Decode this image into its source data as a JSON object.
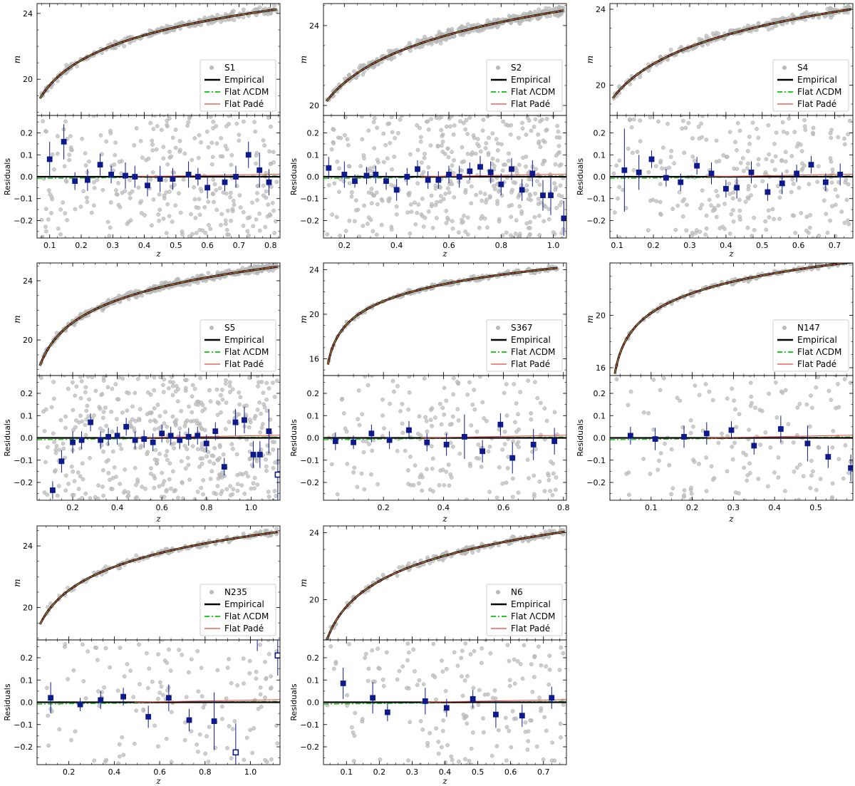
{
  "figure": {
    "chart_data": [
      {
        "type": "scatter",
        "sample": "S1",
        "zlim": [
          0.06,
          0.83
        ],
        "mlim": [
          17.8,
          24.6
        ],
        "mticks": [
          20,
          24
        ],
        "rticks": [
          -0.2,
          -0.1,
          0.0,
          0.1,
          0.2
        ],
        "rlim": [
          -0.28,
          0.28
        ],
        "zticks": [
          0.1,
          0.2,
          0.3,
          0.4,
          0.5,
          0.6,
          0.7,
          0.8
        ],
        "curve": {
          "a": 24.25,
          "b": 5.05,
          "z_end": 0.82
        },
        "n_points": 300,
        "binned": {
          "z": [
            0.1,
            0.145,
            0.18,
            0.22,
            0.26,
            0.295,
            0.34,
            0.37,
            0.41,
            0.45,
            0.49,
            0.54,
            0.57,
            0.6,
            0.655,
            0.69,
            0.73,
            0.765,
            0.795
          ],
          "r": [
            0.08,
            0.16,
            -0.02,
            -0.015,
            0.055,
            0.01,
            0.005,
            0.0,
            -0.04,
            -0.01,
            -0.01,
            0.01,
            0.0,
            -0.05,
            -0.025,
            0.0,
            0.1,
            0.03,
            -0.025
          ],
          "err": [
            0.08,
            0.08,
            0.04,
            0.05,
            0.05,
            0.04,
            0.06,
            0.05,
            0.05,
            0.06,
            0.05,
            0.06,
            0.04,
            0.05,
            0.04,
            0.05,
            0.06,
            0.08,
            0.06
          ],
          "open": []
        }
      },
      {
        "type": "scatter",
        "sample": "S2",
        "zlim": [
          0.12,
          1.05
        ],
        "mlim": [
          19.5,
          25.1
        ],
        "mticks": [
          20,
          24
        ],
        "rticks": [
          -0.2,
          -0.1,
          0.0,
          0.1,
          0.2
        ],
        "rlim": [
          -0.28,
          0.28
        ],
        "zticks": [
          0.2,
          0.4,
          0.6,
          0.8,
          1.0
        ],
        "curve": {
          "a": 24.75,
          "b": 5.05,
          "z_end": 1.04
        },
        "n_points": 420,
        "binned": {
          "z": [
            0.14,
            0.2,
            0.24,
            0.285,
            0.32,
            0.36,
            0.4,
            0.44,
            0.48,
            0.52,
            0.56,
            0.6,
            0.64,
            0.68,
            0.72,
            0.76,
            0.8,
            0.84,
            0.88,
            0.92,
            0.96,
            0.99,
            1.04
          ],
          "r": [
            0.04,
            0.01,
            -0.02,
            0.005,
            0.01,
            -0.02,
            -0.06,
            0.0,
            0.035,
            -0.015,
            -0.015,
            0.01,
            0.0,
            0.025,
            0.045,
            0.02,
            -0.035,
            0.035,
            -0.06,
            0.015,
            -0.085,
            -0.085,
            -0.19
          ],
          "err": [
            0.05,
            0.06,
            0.03,
            0.04,
            0.04,
            0.04,
            0.05,
            0.04,
            0.04,
            0.04,
            0.04,
            0.04,
            0.05,
            0.04,
            0.05,
            0.05,
            0.05,
            0.05,
            0.05,
            0.06,
            0.07,
            0.09,
            0.08
          ],
          "open": []
        }
      },
      {
        "type": "scatter",
        "sample": "S4",
        "zlim": [
          0.08,
          0.75
        ],
        "mlim": [
          18.4,
          24.3
        ],
        "mticks": [
          20,
          24
        ],
        "rticks": [
          -0.2,
          -0.1,
          0.0,
          0.1,
          0.2
        ],
        "rlim": [
          -0.28,
          0.28
        ],
        "zticks": [
          0.1,
          0.2,
          0.3,
          0.4,
          0.5,
          0.6,
          0.7
        ],
        "curve": {
          "a": 24.0,
          "b": 5.05,
          "z_end": 0.745
        },
        "n_points": 260,
        "binned": {
          "z": [
            0.12,
            0.16,
            0.195,
            0.235,
            0.275,
            0.32,
            0.36,
            0.4,
            0.43,
            0.47,
            0.515,
            0.555,
            0.595,
            0.635,
            0.675,
            0.715
          ],
          "r": [
            0.03,
            0.02,
            0.08,
            -0.005,
            -0.025,
            0.05,
            0.015,
            -0.055,
            -0.05,
            0.02,
            -0.07,
            -0.03,
            0.015,
            0.055,
            -0.025,
            0.01
          ],
          "err": [
            0.19,
            0.08,
            0.04,
            0.04,
            0.04,
            0.04,
            0.05,
            0.04,
            0.05,
            0.05,
            0.04,
            0.05,
            0.04,
            0.04,
            0.04,
            0.05
          ],
          "open": []
        }
      },
      {
        "type": "scatter",
        "sample": "S5",
        "zlim": [
          0.04,
          1.13
        ],
        "mlim": [
          17.6,
          25.2
        ],
        "mticks": [
          20,
          24
        ],
        "rticks": [
          -0.2,
          -0.1,
          0.0,
          0.1,
          0.2
        ],
        "rlim": [
          -0.28,
          0.28
        ],
        "zticks": [
          0.2,
          0.4,
          0.6,
          0.8,
          1.0
        ],
        "curve": {
          "a": 24.95,
          "b": 5.05,
          "z_end": 1.12
        },
        "n_points": 460,
        "binned": {
          "z": [
            0.11,
            0.15,
            0.2,
            0.24,
            0.28,
            0.325,
            0.36,
            0.4,
            0.44,
            0.48,
            0.52,
            0.56,
            0.6,
            0.64,
            0.68,
            0.72,
            0.76,
            0.8,
            0.84,
            0.88,
            0.93,
            0.97,
            1.01,
            1.04,
            1.08,
            1.12
          ],
          "r": [
            -0.235,
            -0.105,
            -0.02,
            -0.01,
            0.07,
            -0.01,
            0.005,
            0.01,
            0.05,
            -0.01,
            -0.005,
            -0.02,
            0.02,
            0.01,
            -0.01,
            0.005,
            0.01,
            -0.025,
            0.03,
            -0.13,
            0.07,
            0.08,
            -0.075,
            -0.075,
            0.03,
            -0.165
          ],
          "err": [
            0.04,
            0.05,
            0.05,
            0.04,
            0.04,
            0.04,
            0.04,
            0.04,
            0.04,
            0.04,
            0.04,
            0.04,
            0.04,
            0.04,
            0.04,
            0.04,
            0.04,
            0.04,
            0.04,
            0.04,
            0.06,
            0.06,
            0.06,
            0.06,
            0.1,
            0.12
          ],
          "open": [
            false,
            false,
            false,
            false,
            false,
            false,
            false,
            false,
            false,
            false,
            false,
            false,
            false,
            false,
            false,
            false,
            false,
            false,
            false,
            false,
            false,
            false,
            false,
            false,
            false,
            true
          ]
        }
      },
      {
        "type": "scatter",
        "sample": "S367",
        "zlim": [
          0.0,
          0.81
        ],
        "mlim": [
          14.5,
          24.6
        ],
        "mticks": [
          16,
          20,
          24
        ],
        "rticks": [
          -0.2,
          -0.1,
          0.0,
          0.1,
          0.2
        ],
        "rlim": [
          -0.28,
          0.28
        ],
        "zticks": [
          0.2,
          0.4,
          0.6,
          0.8
        ],
        "curve": {
          "a": 24.15,
          "b": 5.05,
          "z_end": 0.78,
          "z_start": 0.015
        },
        "n_points": 200,
        "binned": {
          "z": [
            0.04,
            0.1,
            0.16,
            0.22,
            0.285,
            0.345,
            0.41,
            0.47,
            0.53,
            0.59,
            0.63,
            0.7,
            0.77
          ],
          "r": [
            -0.015,
            -0.02,
            0.02,
            -0.01,
            0.035,
            -0.02,
            -0.03,
            0.005,
            -0.06,
            0.06,
            -0.09,
            -0.03,
            -0.015
          ],
          "err": [
            0.04,
            0.03,
            0.04,
            0.04,
            0.04,
            0.04,
            0.05,
            0.1,
            0.05,
            0.05,
            0.07,
            0.07,
            0.06
          ],
          "open": []
        }
      },
      {
        "type": "scatter",
        "sample": "N147",
        "zlim": [
          0.0,
          0.59
        ],
        "mlim": [
          15.4,
          24.0
        ],
        "mticks": [
          16,
          20
        ],
        "rticks": [
          -0.2,
          -0.1,
          0.0,
          0.1,
          0.2
        ],
        "rlim": [
          -0.28,
          0.28
        ],
        "zticks": [
          0.1,
          0.2,
          0.3,
          0.4,
          0.5
        ],
        "curve": {
          "a": 24.05,
          "b": 5.05,
          "z_end": 0.585,
          "z_start": 0.012
        },
        "n_points": 150,
        "binned": {
          "z": [
            0.05,
            0.11,
            0.18,
            0.235,
            0.295,
            0.35,
            0.415,
            0.48,
            0.53,
            0.585
          ],
          "r": [
            0.01,
            -0.005,
            0.005,
            0.02,
            0.035,
            -0.035,
            0.04,
            -0.025,
            -0.085,
            -0.135
          ],
          "err": [
            0.04,
            0.05,
            0.05,
            0.05,
            0.04,
            0.04,
            0.06,
            0.08,
            0.05,
            0.06
          ],
          "open": []
        }
      },
      {
        "type": "scatter",
        "sample": "N235",
        "zlim": [
          0.06,
          1.13
        ],
        "mlim": [
          17.9,
          25.3
        ],
        "mticks": [
          20,
          24
        ],
        "rticks": [
          -0.2,
          -0.1,
          0.0,
          0.1,
          0.2
        ],
        "rlim": [
          -0.28,
          0.28
        ],
        "zticks": [
          0.2,
          0.4,
          0.6,
          0.8,
          1.0
        ],
        "curve": {
          "a": 24.9,
          "b": 5.05,
          "z_end": 1.12
        },
        "n_points": 140,
        "binned": {
          "z": [
            0.12,
            0.25,
            0.34,
            0.44,
            0.55,
            0.64,
            0.73,
            0.84,
            0.935,
            1.03,
            1.12
          ],
          "r": [
            0.02,
            -0.01,
            0.01,
            0.025,
            -0.065,
            0.02,
            -0.08,
            -0.085,
            -0.225,
            0.35,
            0.21
          ],
          "err": [
            0.07,
            0.03,
            0.04,
            0.04,
            0.05,
            0.06,
            0.05,
            0.13,
            0.13,
            0.12,
            0.09
          ],
          "open": [
            false,
            false,
            false,
            false,
            false,
            false,
            false,
            false,
            true,
            false,
            true
          ]
        }
      },
      {
        "type": "scatter",
        "sample": "N6",
        "zlim": [
          0.03,
          0.77
        ],
        "mlim": [
          17.6,
          24.4
        ],
        "mticks": [
          20,
          24
        ],
        "rticks": [
          -0.2,
          -0.1,
          0.0,
          0.1,
          0.2
        ],
        "rlim": [
          -0.28,
          0.28
        ],
        "zticks": [
          0.1,
          0.2,
          0.3,
          0.4,
          0.5,
          0.6,
          0.7
        ],
        "curve": {
          "a": 24.05,
          "b": 5.05,
          "z_end": 0.765
        },
        "n_points": 170,
        "binned": {
          "z": [
            0.09,
            0.18,
            0.225,
            0.34,
            0.405,
            0.485,
            0.555,
            0.635,
            0.725
          ],
          "r": [
            0.085,
            0.02,
            -0.045,
            0.005,
            -0.025,
            0.015,
            -0.055,
            -0.06,
            0.02
          ],
          "err": [
            0.07,
            0.07,
            0.04,
            0.06,
            0.04,
            0.04,
            0.06,
            0.05,
            0.05
          ],
          "open": []
        }
      }
    ],
    "legend_items": [
      "Empirical",
      "Flat ΛCDM",
      "Flat Padé"
    ],
    "top_ylabel": "m",
    "bottom_ylabel": "Residuals",
    "xlabel": "z",
    "colors": {
      "data": "#bdbdbd",
      "binned": "#0d1a8c",
      "empirical": "#000000",
      "lcdm": "#22cc22",
      "pade": "#e8463c"
    }
  }
}
